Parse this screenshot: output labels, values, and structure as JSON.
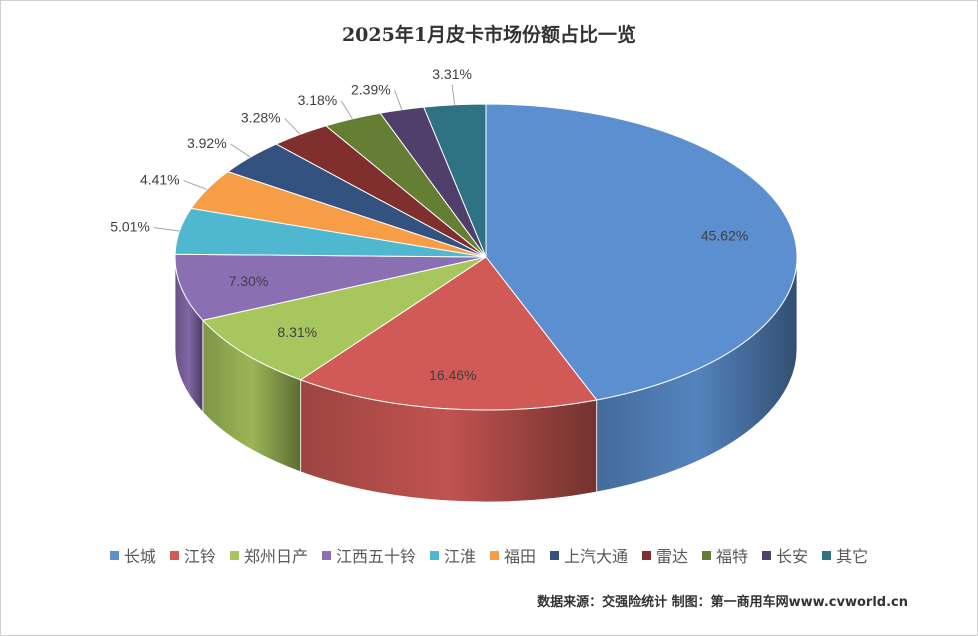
{
  "chart_data": {
    "type": "pie",
    "title": "2025年1月皮卡市场份额占比一览",
    "unit": "%",
    "three_d": true,
    "legend_position": "bottom",
    "series": [
      {
        "name": "长城",
        "value": 45.62,
        "label": "45.62%",
        "color": "#5b8fcf"
      },
      {
        "name": "江铃",
        "value": 16.46,
        "label": "16.46%",
        "color": "#d15a56"
      },
      {
        "name": "郑州日产",
        "value": 8.31,
        "label": "8.31%",
        "color": "#a8c65e"
      },
      {
        "name": "江西五十铃",
        "value": 7.3,
        "label": "7.30%",
        "color": "#8b6fb3"
      },
      {
        "name": "江淮",
        "value": 5.01,
        "label": "5.01%",
        "color": "#4fb7cf"
      },
      {
        "name": "福田",
        "value": 4.41,
        "label": "4.41%",
        "color": "#f79d45"
      },
      {
        "name": "上汽大通",
        "value": 3.92,
        "label": "3.92%",
        "color": "#33527f"
      },
      {
        "name": "雷达",
        "value": 3.28,
        "label": "3.28%",
        "color": "#7f2f2d"
      },
      {
        "name": "福特",
        "value": 3.18,
        "label": "3.18%",
        "color": "#647f33"
      },
      {
        "name": "长安",
        "value": 2.39,
        "label": "2.39%",
        "color": "#503f6b"
      },
      {
        "name": "其它",
        "value": 3.31,
        "label": "3.31%",
        "color": "#2f7283"
      }
    ]
  },
  "source_note": "数据来源：交强险统计 制图：第一商用车网www.cvworld.cn"
}
